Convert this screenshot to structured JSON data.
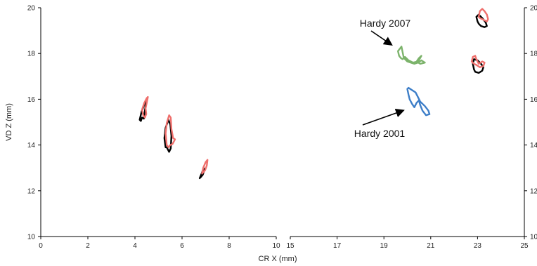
{
  "chart_data": {
    "type": "line",
    "title": "",
    "xlabel": "CR X (mm)",
    "ylabel": "VD Z (mm)",
    "ylim": [
      10,
      20
    ],
    "y_ticks": [
      10,
      12,
      14,
      16,
      18,
      20
    ],
    "x_panels": [
      {
        "xlim": [
          0,
          10
        ],
        "ticks": [
          0,
          2,
          4,
          6,
          8,
          10
        ]
      },
      {
        "xlim": [
          15,
          25
        ],
        "ticks": [
          15,
          17,
          19,
          21,
          23,
          25
        ]
      }
    ],
    "grid": false,
    "legend": "none",
    "colors": {
      "black": "#000000",
      "red": "#ef6f6c",
      "green": "#7cb36b",
      "blue": "#3d7ec8",
      "axis": "#000000"
    },
    "annotations": [
      {
        "text": "Hardy 2007",
        "arrow_to": [
          19.3,
          18.4
        ]
      },
      {
        "text": "Hardy 2001",
        "arrow_to": [
          19.8,
          15.5
        ]
      }
    ],
    "series": [
      {
        "color": "black",
        "panel": 0,
        "x": [
          4.3,
          4.25,
          4.2,
          4.28,
          4.42,
          4.5,
          4.45,
          4.4,
          4.38,
          4.3
        ],
        "y": [
          15.2,
          15.05,
          15.1,
          15.45,
          15.85,
          16.0,
          15.7,
          15.35,
          15.15,
          15.2
        ]
      },
      {
        "color": "red",
        "panel": 0,
        "x": [
          4.35,
          4.3,
          4.4,
          4.5,
          4.55,
          4.5,
          4.45,
          4.48,
          4.42,
          4.35
        ],
        "y": [
          15.3,
          15.55,
          15.85,
          16.05,
          16.1,
          15.85,
          15.6,
          15.35,
          15.2,
          15.3
        ]
      },
      {
        "color": "black",
        "panel": 0,
        "x": [
          5.3,
          5.25,
          5.3,
          5.42,
          5.5,
          5.55,
          5.52,
          5.45,
          5.4,
          5.35
        ],
        "y": [
          13.9,
          14.3,
          14.75,
          15.1,
          14.9,
          14.4,
          13.85,
          13.7,
          13.8,
          13.9
        ]
      },
      {
        "color": "red",
        "panel": 0,
        "x": [
          5.35,
          5.3,
          5.35,
          5.45,
          5.52,
          5.55,
          5.62,
          5.7,
          5.6,
          5.5,
          5.42,
          5.35
        ],
        "y": [
          14.0,
          14.5,
          14.95,
          15.3,
          15.2,
          14.7,
          14.3,
          14.25,
          14.05,
          14.0,
          13.9,
          14.0
        ]
      },
      {
        "color": "black",
        "panel": 0,
        "x": [
          6.8,
          6.75,
          6.85,
          6.92,
          6.95,
          6.88,
          6.8
        ],
        "y": [
          12.6,
          12.55,
          12.8,
          13.0,
          12.9,
          12.7,
          12.6
        ]
      },
      {
        "color": "red",
        "panel": 0,
        "x": [
          6.85,
          6.9,
          7.0,
          7.08,
          7.05,
          6.98,
          6.9,
          6.85
        ],
        "y": [
          12.75,
          13.0,
          13.25,
          13.35,
          13.1,
          12.9,
          12.8,
          12.75
        ]
      },
      {
        "color": "green",
        "panel": 1,
        "x": [
          19.75,
          19.6,
          19.65,
          19.72,
          19.8,
          19.9,
          20.05,
          20.25,
          20.45,
          20.55,
          20.6,
          20.5,
          20.4,
          20.55,
          20.75,
          20.6,
          20.45,
          20.3,
          20.15,
          20.0,
          19.85,
          19.75
        ],
        "y": [
          18.3,
          18.1,
          17.9,
          17.8,
          17.75,
          17.85,
          17.7,
          17.6,
          17.65,
          17.8,
          17.9,
          17.8,
          17.65,
          17.55,
          17.6,
          17.7,
          17.6,
          17.55,
          17.6,
          17.65,
          17.8,
          18.3
        ]
      },
      {
        "color": "blue",
        "panel": 1,
        "x": [
          20.05,
          20.2,
          20.35,
          20.45,
          20.55,
          20.75,
          20.9,
          20.95,
          20.8,
          20.65,
          20.55,
          20.5,
          20.4,
          20.3,
          20.2,
          20.1,
          20.05,
          20.0,
          20.05
        ],
        "y": [
          16.5,
          16.4,
          16.3,
          16.1,
          15.9,
          15.7,
          15.5,
          15.35,
          15.3,
          15.5,
          15.75,
          15.95,
          15.85,
          15.65,
          15.8,
          16.0,
          16.2,
          16.45,
          16.5
        ]
      },
      {
        "color": "black",
        "panel": 1,
        "x": [
          23.0,
          22.95,
          23.05,
          23.2,
          23.35,
          23.4,
          23.3,
          23.15,
          23.05,
          23.0
        ],
        "y": [
          19.4,
          19.6,
          19.7,
          19.55,
          19.35,
          19.2,
          19.15,
          19.2,
          19.3,
          19.4
        ]
      },
      {
        "color": "red",
        "panel": 1,
        "x": [
          23.05,
          23.1,
          23.2,
          23.3,
          23.4,
          23.45,
          23.4,
          23.3,
          23.2,
          23.1,
          23.05
        ],
        "y": [
          19.6,
          19.85,
          19.95,
          19.85,
          19.7,
          19.5,
          19.4,
          19.45,
          19.5,
          19.55,
          19.6
        ]
      },
      {
        "color": "black",
        "panel": 1,
        "x": [
          22.85,
          22.8,
          22.85,
          23.0,
          23.15,
          23.25,
          23.2,
          23.05,
          22.9,
          22.85
        ],
        "y": [
          17.3,
          17.55,
          17.75,
          17.7,
          17.55,
          17.4,
          17.25,
          17.15,
          17.2,
          17.3
        ]
      },
      {
        "color": "red",
        "panel": 1,
        "x": [
          22.75,
          22.8,
          22.9,
          22.95,
          23.05,
          23.2,
          23.3,
          23.25,
          23.1,
          22.95,
          22.85,
          22.75
        ],
        "y": [
          17.65,
          17.85,
          17.9,
          17.75,
          17.55,
          17.65,
          17.6,
          17.45,
          17.4,
          17.5,
          17.55,
          17.65
        ]
      }
    ]
  }
}
